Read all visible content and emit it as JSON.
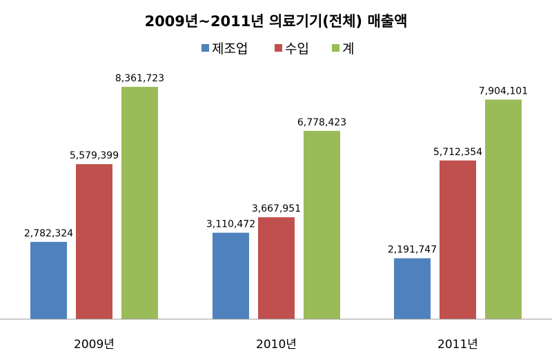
{
  "chart_data": {
    "type": "bar",
    "title": "2009년~2011년 의료기기(전체) 매출액",
    "categories": [
      "2009년",
      "2010년",
      "2011년"
    ],
    "series": [
      {
        "name": "제조업",
        "color": "#4f81bd",
        "values": [
          2782324,
          3110472,
          2191747
        ],
        "labels": [
          "2,782,324",
          "3,110,472",
          "2,191,747"
        ]
      },
      {
        "name": "수입",
        "color": "#c0504d",
        "values": [
          5579399,
          3667951,
          5712354
        ],
        "labels": [
          "5,579,399",
          "3,667,951",
          "5,712,354"
        ]
      },
      {
        "name": "계",
        "color": "#9bbb59",
        "values": [
          8361723,
          6778423,
          7904101
        ],
        "labels": [
          "8,361,723",
          "6,778,423",
          "7,904,101"
        ]
      }
    ],
    "xlabel": "",
    "ylabel": "",
    "ylim": [
      0,
      9000000
    ],
    "grid": false,
    "legend": "top"
  }
}
